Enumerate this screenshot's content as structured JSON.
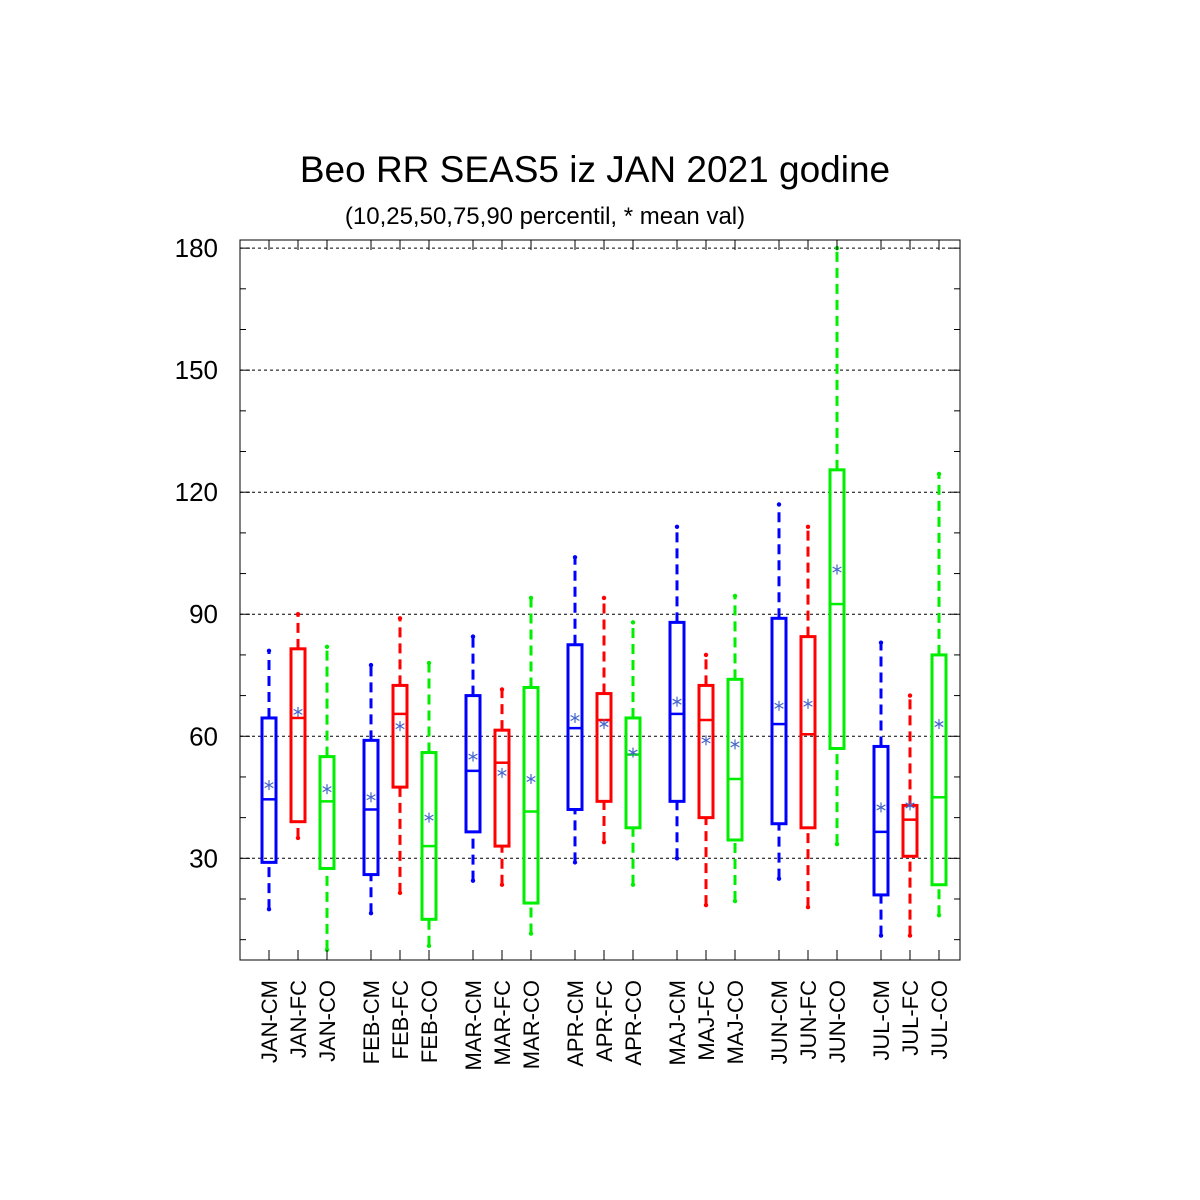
{
  "chart_data": {
    "type": "box",
    "title": "Beo RR SEAS5 iz JAN 2021 godine",
    "subtitle": "(10,25,50,75,90 percentil, * mean val)",
    "xlabel": "",
    "ylabel": "",
    "ylim": [
      5,
      182
    ],
    "yticks": [
      30,
      60,
      90,
      120,
      150,
      180
    ],
    "grid": true,
    "colors": {
      "CM": "#0000ff",
      "FC": "#ff0000",
      "CO": "#00ee00",
      "mean": "#4466cc"
    },
    "groups": [
      {
        "boxes": [
          {
            "label": "JAN-CM",
            "kind": "CM",
            "p10": 17.5,
            "p25": 29,
            "p50": 44.5,
            "p75": 64.5,
            "p90": 81,
            "mean": 48
          },
          {
            "label": "JAN-FC",
            "kind": "FC",
            "p10": 35,
            "p25": 39,
            "p50": 64.5,
            "p75": 81.5,
            "p90": 90,
            "mean": 66
          },
          {
            "label": "JAN-CO",
            "kind": "CO",
            "p10": 7.5,
            "p25": 27.5,
            "p50": 44,
            "p75": 55,
            "p90": 82,
            "mean": 47
          }
        ]
      },
      {
        "boxes": [
          {
            "label": "FEB-CM",
            "kind": "CM",
            "p10": 16.5,
            "p25": 26,
            "p50": 42,
            "p75": 59,
            "p90": 77.5,
            "mean": 45
          },
          {
            "label": "FEB-FC",
            "kind": "FC",
            "p10": 21.5,
            "p25": 47.5,
            "p50": 65.5,
            "p75": 72.5,
            "p90": 89,
            "mean": 62.5
          },
          {
            "label": "FEB-CO",
            "kind": "CO",
            "p10": 8.5,
            "p25": 15,
            "p50": 33,
            "p75": 56,
            "p90": 78,
            "mean": 40
          }
        ]
      },
      {
        "boxes": [
          {
            "label": "MAR-CM",
            "kind": "CM",
            "p10": 24.5,
            "p25": 36.5,
            "p50": 51.5,
            "p75": 70,
            "p90": 84.5,
            "mean": 55
          },
          {
            "label": "MAR-FC",
            "kind": "FC",
            "p10": 23.5,
            "p25": 33,
            "p50": 53.5,
            "p75": 61.5,
            "p90": 71.5,
            "mean": 51
          },
          {
            "label": "MAR-CO",
            "kind": "CO",
            "p10": 11.5,
            "p25": 19,
            "p50": 41.5,
            "p75": 72,
            "p90": 94,
            "mean": 49.5
          }
        ]
      },
      {
        "boxes": [
          {
            "label": "APR-CM",
            "kind": "CM",
            "p10": 29,
            "p25": 42,
            "p50": 62,
            "p75": 82.5,
            "p90": 104,
            "mean": 64.5
          },
          {
            "label": "APR-FC",
            "kind": "FC",
            "p10": 34,
            "p25": 44,
            "p50": 64,
            "p75": 70.5,
            "p90": 94,
            "mean": 63
          },
          {
            "label": "APR-CO",
            "kind": "CO",
            "p10": 23.5,
            "p25": 37.5,
            "p50": 55.5,
            "p75": 64.5,
            "p90": 88,
            "mean": 56
          }
        ]
      },
      {
        "boxes": [
          {
            "label": "MAJ-CM",
            "kind": "CM",
            "p10": 30,
            "p25": 44,
            "p50": 65.5,
            "p75": 88,
            "p90": 111.5,
            "mean": 68.5
          },
          {
            "label": "MAJ-FC",
            "kind": "FC",
            "p10": 18.5,
            "p25": 40,
            "p50": 64,
            "p75": 72.5,
            "p90": 80,
            "mean": 59
          },
          {
            "label": "MAJ-CO",
            "kind": "CO",
            "p10": 19.5,
            "p25": 34.5,
            "p50": 49.5,
            "p75": 74,
            "p90": 94.5,
            "mean": 58
          }
        ]
      },
      {
        "boxes": [
          {
            "label": "JUN-CM",
            "kind": "CM",
            "p10": 25,
            "p25": 38.5,
            "p50": 63,
            "p75": 89,
            "p90": 117,
            "mean": 67.5
          },
          {
            "label": "JUN-FC",
            "kind": "FC",
            "p10": 18,
            "p25": 37.5,
            "p50": 60.5,
            "p75": 84.5,
            "p90": 111.5,
            "mean": 68
          },
          {
            "label": "JUN-CO",
            "kind": "CO",
            "p10": 33.5,
            "p25": 57,
            "p50": 92.5,
            "p75": 125.5,
            "p90": 180,
            "mean": 101
          }
        ]
      },
      {
        "boxes": [
          {
            "label": "JUL-CM",
            "kind": "CM",
            "p10": 11,
            "p25": 21,
            "p50": 36.5,
            "p75": 57.5,
            "p90": 83,
            "mean": 42.5
          },
          {
            "label": "JUL-FC",
            "kind": "FC",
            "p10": 11,
            "p25": 30.5,
            "p50": 39.5,
            "p75": 43,
            "p90": 70,
            "mean": 43
          },
          {
            "label": "JUL-CO",
            "kind": "CO",
            "p10": 16,
            "p25": 23.5,
            "p50": 45,
            "p75": 80,
            "p90": 124.5,
            "mean": 63
          }
        ]
      }
    ]
  }
}
